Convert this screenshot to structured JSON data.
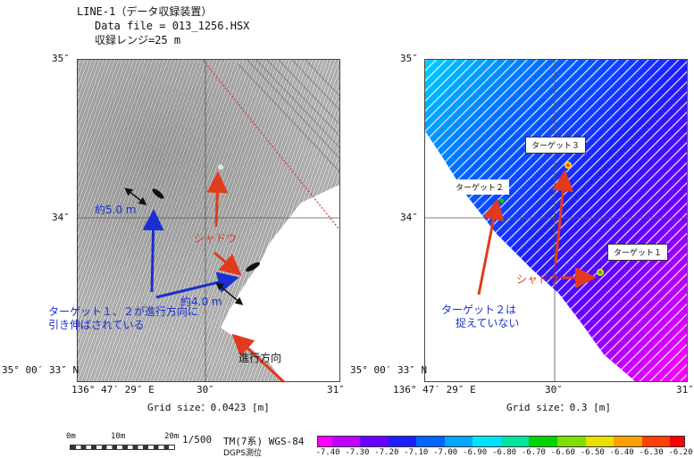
{
  "header": {
    "line1": "LINE-1（データ収録装置）",
    "line2": "Data file = 013_1256.HSX",
    "line3": "収録レンジ=25 m"
  },
  "left_panel": {
    "y_ticks": [
      "35″",
      "34″",
      "35° 00′ 33″ N"
    ],
    "x_ticks": [
      "136° 47′ 29″ E",
      "30″",
      "31″"
    ],
    "grid_size": "Grid size：0.0423 [m]",
    "labels": {
      "width5": "約5.0 m",
      "width4": "約4.0 m",
      "shadow": "シャドウ",
      "direction": "進行方向",
      "note_line1": "ターゲット１、２が進行方向に",
      "note_line2": "引き伸ばされている"
    }
  },
  "right_panel": {
    "y_ticks": [
      "35″",
      "34″",
      "35° 00′ 33″ N"
    ],
    "x_ticks": [
      "136° 47′ 29″ E",
      "30″",
      "31″"
    ],
    "grid_size": "Grid size：0.3 [m]",
    "labels": {
      "target3": "ターゲット３",
      "target2": "ターゲット２",
      "target1": "ターゲット１",
      "shadow": "シャドウ",
      "note_line1": "ターゲット２は",
      "note_line2": "捉えていない"
    }
  },
  "footer": {
    "scale_ticks": [
      "0m",
      "10m",
      "20m"
    ],
    "scale_text": "1/500",
    "projection": "TM(7系) WGS-84",
    "survey": "DGPS測位",
    "colorbar_values": [
      "-7.40",
      "-7.30",
      "-7.20",
      "-7.10",
      "-7.00",
      "-6.90",
      "-6.80",
      "-6.70",
      "-6.60",
      "-6.50",
      "-6.40",
      "-6.30",
      "-6.20"
    ],
    "colorbar_colors": [
      "#ff00ff",
      "#c000ff",
      "#6a00ff",
      "#1e1eff",
      "#0066ff",
      "#00a8ff",
      "#00e5ff",
      "#00e6a0",
      "#00d400",
      "#7ce000",
      "#e8e000",
      "#ffa000",
      "#ff4000",
      "#ff0000"
    ]
  }
}
